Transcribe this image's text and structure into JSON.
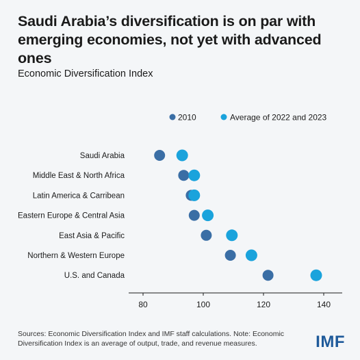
{
  "title": "Saudi Arabia’s diversification is on par with emerging economies, not yet with advanced ones",
  "subtitle": "Economic Diversification Index",
  "source": "Sources: Economic Diversification Index and IMF staff calculations. Note: Economic Diversification Index is an average of output, trade, and revenue measures.",
  "logo": "IMF",
  "chart_data": {
    "type": "scatter",
    "orientation": "horizontal-dot-plot",
    "categories": [
      "Saudi Arabia",
      "Middle East & North Africa",
      "Latin America & Carribean",
      "Eastern Europe & Central Asia",
      "East Asia & Pacific",
      "Northern & Western Europe",
      "U.S. and Canada"
    ],
    "series": [
      {
        "name": "2010",
        "color": "#3a6ea5",
        "values": [
          85.5,
          93.5,
          96,
          97,
          101,
          109,
          121.5
        ]
      },
      {
        "name": "Average of 2022 and 2023",
        "color": "#1aa3dc",
        "values": [
          93,
          97,
          97,
          101.5,
          109.5,
          116,
          137.5
        ]
      }
    ],
    "xlim": [
      76,
      144
    ],
    "xticks": [
      "80",
      "100",
      "120",
      "140"
    ],
    "xtick_values": [
      80,
      100,
      120,
      140
    ],
    "grid": false,
    "legend_position": "top-right"
  }
}
